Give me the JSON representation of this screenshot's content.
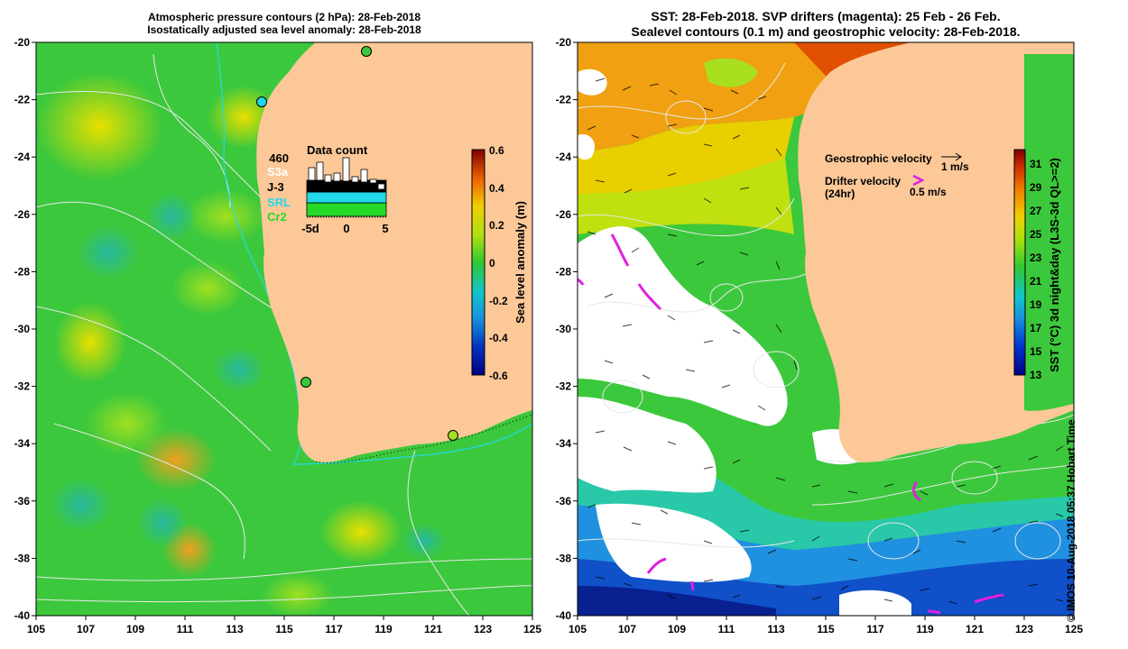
{
  "left_panel": {
    "title_line1": "Atmospheric pressure contours (2 hPa): 28-Feb-2018",
    "title_line2": "Isostatically adjusted sea level anomaly: 28-Feb-2018",
    "colorbar_label": "Sea level anomaly (m)",
    "colorbar_ticks": [
      "0.6",
      "0.4",
      "0.2",
      "0",
      "-0.2",
      "-0.4",
      "-0.6"
    ],
    "data_count": {
      "title": "Data count",
      "max_label": "460",
      "x_tick_labels": [
        "-5d",
        "0",
        "5"
      ],
      "legend": [
        {
          "label": "S3a",
          "color": "#ffffff"
        },
        {
          "label": "J-3",
          "color": "#000000"
        },
        {
          "label": "SRL",
          "color": "#22d8e8"
        },
        {
          "label": "Cr2",
          "color": "#28d828"
        }
      ]
    }
  },
  "right_panel": {
    "title_line1": "SST: 28-Feb-2018. SVP drifters (magenta): 25 Feb - 26 Feb.",
    "title_line2": "Sealevel contours (0.1 m) and geostrophic velocity: 28-Feb-2018.",
    "geo_velocity_label": "Geostrophic velocity",
    "geo_velocity_scale": "1 m/s",
    "drifter_label_line1": "Drifter velocity",
    "drifter_label_line2": "(24hr)",
    "drifter_scale": "0.5 m/s",
    "colorbar_label": "SST (°C) 3d night&day (L3S-3d QL>=2)",
    "colorbar_ticks": [
      "31",
      "29",
      "27",
      "25",
      "23",
      "21",
      "19",
      "17",
      "15",
      "13"
    ]
  },
  "axes": {
    "x_ticks": [
      "105",
      "107",
      "109",
      "111",
      "113",
      "115",
      "117",
      "119",
      "121",
      "123",
      "125"
    ],
    "y_ticks": [
      "-20",
      "-22",
      "-24",
      "-26",
      "-28",
      "-30",
      "-32",
      "-34",
      "-36",
      "-38",
      "-40"
    ]
  },
  "copyright": "© IMOS 10-Aug-2018 05:37 Hobart Time",
  "colors": {
    "land": "#fcc898",
    "ocean_green": "#3cc83c",
    "coastline": "#22d8e8",
    "drifter": "#e020e0",
    "contour": "#e8e8e8"
  }
}
